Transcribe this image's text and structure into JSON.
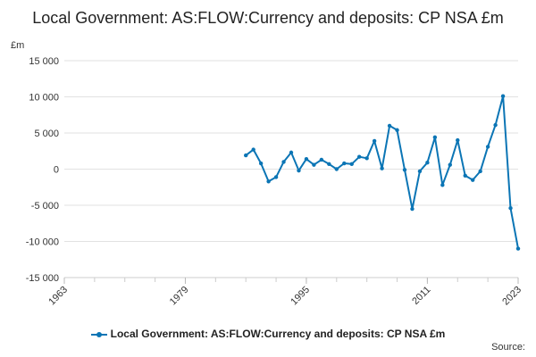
{
  "chart_data": {
    "type": "line",
    "title": "Local Government: AS:FLOW:Currency and deposits: CP NSA £m",
    "ylabel": "£m",
    "xlabel": "",
    "ylim": [
      -15000,
      15000
    ],
    "yticks": [
      15000,
      10000,
      5000,
      0,
      -5000,
      -10000,
      -15000
    ],
    "ytick_labels": [
      "15 000",
      "10 000",
      "5 000",
      "0",
      "-5 000",
      "-10 000",
      "-15 000"
    ],
    "xlim": [
      1963,
      2023
    ],
    "xticks": [
      1963,
      1979,
      1995,
      2011,
      2023
    ],
    "xtick_labels": [
      "1963",
      "1979",
      "1995",
      "2011",
      "2023"
    ],
    "grid": true,
    "legend": "bottom",
    "series": [
      {
        "name": "Local Government: AS:FLOW:Currency and deposits: CP NSA £m",
        "color": "#0b75b5",
        "x": [
          1987,
          1988,
          1989,
          1990,
          1991,
          1992,
          1993,
          1994,
          1995,
          1996,
          1997,
          1998,
          1999,
          2000,
          2001,
          2002,
          2003,
          2004,
          2005,
          2006,
          2007,
          2008,
          2009,
          2010,
          2011,
          2012,
          2013,
          2014,
          2015,
          2016,
          2017,
          2018,
          2019,
          2020,
          2021,
          2022,
          2023
        ],
        "values": [
          1900,
          2700,
          800,
          -1700,
          -1100,
          1000,
          2300,
          -200,
          1400,
          600,
          1300,
          700,
          0,
          800,
          700,
          1700,
          1500,
          3900,
          100,
          6000,
          5400,
          -100,
          -5500,
          -300,
          900,
          4400,
          -2200,
          600,
          4000,
          -900,
          -1500,
          -300,
          3100,
          6100,
          10100,
          -5400,
          -11000
        ]
      }
    ]
  },
  "source_label": "Source:"
}
